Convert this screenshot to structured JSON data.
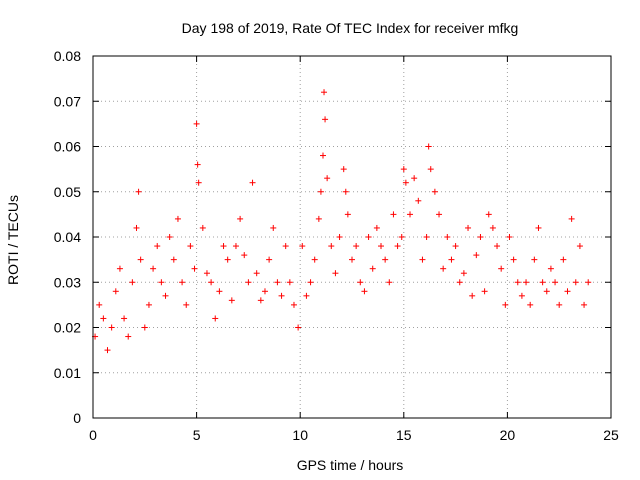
{
  "chart_data": {
    "type": "scatter",
    "title": "Day 198 of 2019, Rate Of TEC Index for receiver mfkg",
    "xlabel": "GPS time / hours",
    "ylabel": "ROTI / TECUs",
    "xlim": [
      0,
      25
    ],
    "ylim": [
      0,
      0.08
    ],
    "x_ticks": [
      0,
      5,
      10,
      15,
      20,
      25
    ],
    "x_tick_labels": [
      "0",
      "5",
      "10",
      "15",
      "20",
      "25"
    ],
    "y_ticks": [
      0,
      0.01,
      0.02,
      0.03,
      0.04,
      0.05,
      0.06,
      0.07,
      0.08
    ],
    "y_tick_labels": [
      "0",
      "0.01",
      "0.02",
      "0.03",
      "0.04",
      "0.05",
      "0.06",
      "0.07",
      "0.08"
    ],
    "grid": true,
    "marker": "+",
    "series": [
      {
        "name": "ROTI",
        "color": "#ff0000",
        "x": [
          0.1,
          0.3,
          0.5,
          0.7,
          0.9,
          1.1,
          1.3,
          1.5,
          1.7,
          1.9,
          2.1,
          2.2,
          2.3,
          2.5,
          2.7,
          2.9,
          3.1,
          3.3,
          3.5,
          3.7,
          3.9,
          4.1,
          4.3,
          4.5,
          4.7,
          4.9,
          5.0,
          5.05,
          5.1,
          5.3,
          5.5,
          5.7,
          5.9,
          6.1,
          6.3,
          6.5,
          6.7,
          6.9,
          7.1,
          7.3,
          7.5,
          7.7,
          7.9,
          8.1,
          8.3,
          8.5,
          8.7,
          8.9,
          9.1,
          9.3,
          9.5,
          9.7,
          9.9,
          10.1,
          10.3,
          10.5,
          10.7,
          10.9,
          11.0,
          11.1,
          11.15,
          11.2,
          11.3,
          11.5,
          11.7,
          11.9,
          12.1,
          12.2,
          12.3,
          12.5,
          12.7,
          12.9,
          13.1,
          13.3,
          13.5,
          13.7,
          13.9,
          14.1,
          14.3,
          14.5,
          14.7,
          14.9,
          15.0,
          15.1,
          15.3,
          15.5,
          15.7,
          15.9,
          16.1,
          16.2,
          16.3,
          16.5,
          16.7,
          16.9,
          17.1,
          17.3,
          17.5,
          17.7,
          17.9,
          18.1,
          18.3,
          18.5,
          18.7,
          18.9,
          19.1,
          19.3,
          19.5,
          19.7,
          19.9,
          20.1,
          20.3,
          20.5,
          20.7,
          20.9,
          21.1,
          21.3,
          21.5,
          21.7,
          21.9,
          22.1,
          22.3,
          22.5,
          22.7,
          22.9,
          23.1,
          23.3,
          23.5,
          23.7,
          23.9
        ],
        "y": [
          0.018,
          0.025,
          0.022,
          0.015,
          0.02,
          0.028,
          0.033,
          0.022,
          0.018,
          0.03,
          0.042,
          0.05,
          0.035,
          0.02,
          0.025,
          0.033,
          0.038,
          0.03,
          0.027,
          0.04,
          0.035,
          0.044,
          0.03,
          0.025,
          0.038,
          0.033,
          0.065,
          0.056,
          0.052,
          0.042,
          0.032,
          0.03,
          0.022,
          0.028,
          0.038,
          0.035,
          0.026,
          0.038,
          0.044,
          0.036,
          0.03,
          0.052,
          0.032,
          0.026,
          0.028,
          0.035,
          0.042,
          0.03,
          0.027,
          0.038,
          0.03,
          0.025,
          0.02,
          0.038,
          0.027,
          0.03,
          0.035,
          0.044,
          0.05,
          0.058,
          0.072,
          0.066,
          0.053,
          0.038,
          0.032,
          0.04,
          0.055,
          0.05,
          0.045,
          0.035,
          0.038,
          0.03,
          0.028,
          0.04,
          0.033,
          0.042,
          0.038,
          0.035,
          0.03,
          0.045,
          0.038,
          0.04,
          0.055,
          0.052,
          0.045,
          0.053,
          0.048,
          0.035,
          0.04,
          0.06,
          0.055,
          0.05,
          0.045,
          0.033,
          0.04,
          0.035,
          0.038,
          0.03,
          0.032,
          0.042,
          0.027,
          0.036,
          0.04,
          0.028,
          0.045,
          0.042,
          0.038,
          0.033,
          0.025,
          0.04,
          0.035,
          0.03,
          0.027,
          0.03,
          0.025,
          0.035,
          0.042,
          0.03,
          0.028,
          0.033,
          0.03,
          0.025,
          0.035,
          0.028,
          0.044,
          0.03,
          0.038,
          0.025,
          0.03
        ]
      }
    ]
  }
}
